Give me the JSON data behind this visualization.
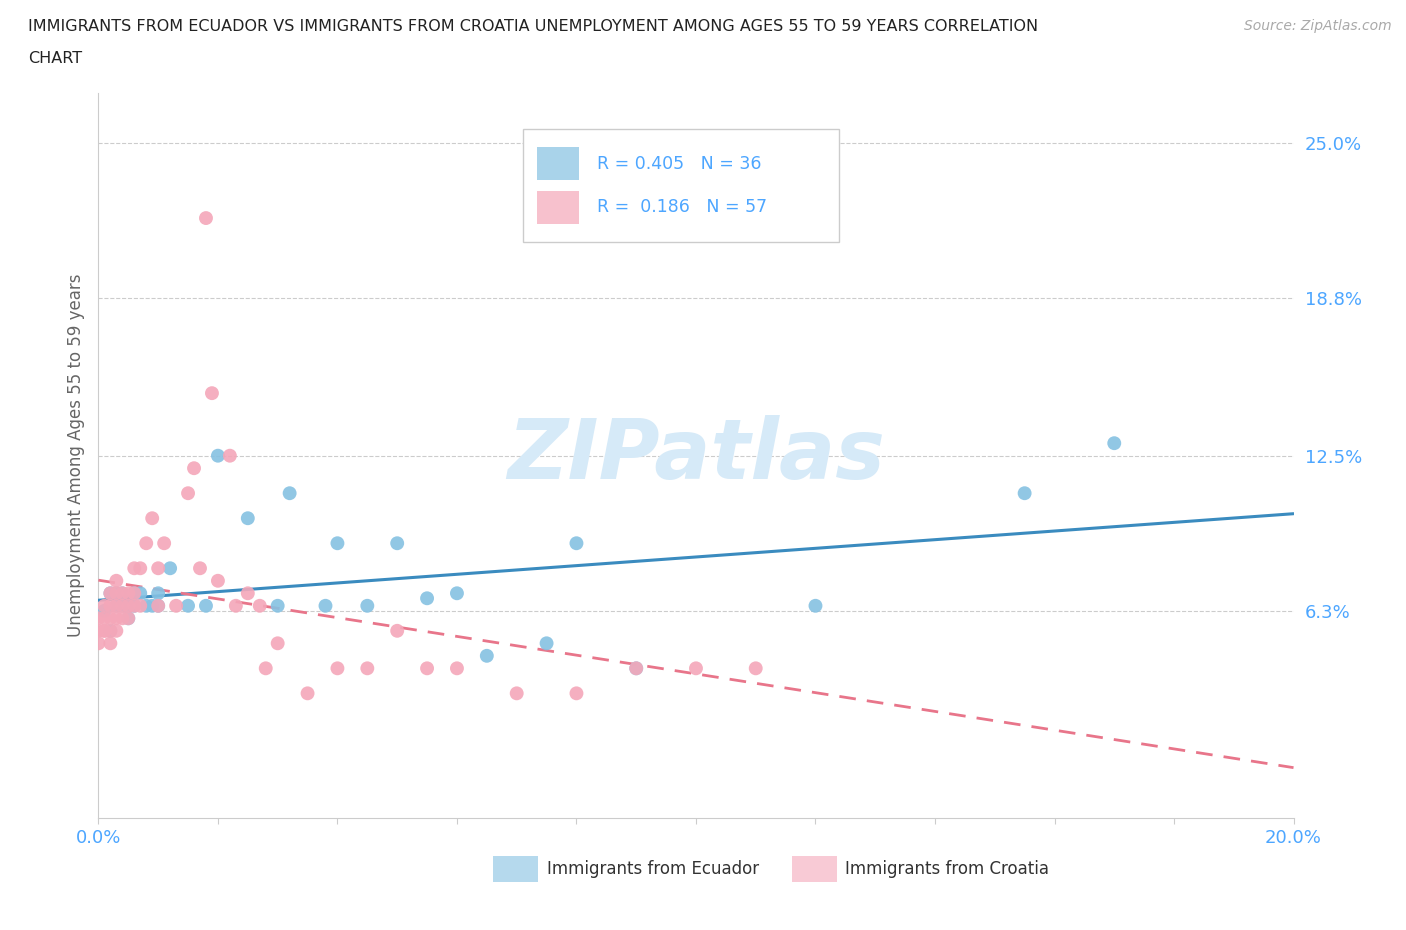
{
  "title_line1": "IMMIGRANTS FROM ECUADOR VS IMMIGRANTS FROM CROATIA UNEMPLOYMENT AMONG AGES 55 TO 59 YEARS CORRELATION",
  "title_line2": "CHART",
  "source": "Source: ZipAtlas.com",
  "ylabel": "Unemployment Among Ages 55 to 59 years",
  "xlim": [
    0.0,
    0.2
  ],
  "ylim": [
    -0.02,
    0.27
  ],
  "yticks": [
    0.063,
    0.125,
    0.188,
    0.25
  ],
  "ytick_labels": [
    "6.3%",
    "12.5%",
    "18.8%",
    "25.0%"
  ],
  "xticks": [
    0.0,
    0.02,
    0.04,
    0.06,
    0.08,
    0.1,
    0.12,
    0.14,
    0.16,
    0.18,
    0.2
  ],
  "xtick_labels_show": [
    "0.0%",
    "",
    "",
    "",
    "",
    "",
    "",
    "",
    "",
    "",
    "20.0%"
  ],
  "ecuador_R": 0.405,
  "ecuador_N": 36,
  "croatia_R": 0.186,
  "croatia_N": 57,
  "ecuador_color": "#85c1e2",
  "croatia_color": "#f4a7b9",
  "ecuador_line_color": "#3a8bbf",
  "croatia_line_color": "#e8758a",
  "background_color": "#ffffff",
  "grid_color": "#cccccc",
  "tick_color": "#4da6ff",
  "legend_text_color": "#4da6ff",
  "title_color": "#222222",
  "source_color": "#aaaaaa",
  "ylabel_color": "#666666",
  "watermark_color": "#d6eaf8",
  "ecuador_x": [
    0.001,
    0.002,
    0.002,
    0.003,
    0.003,
    0.004,
    0.004,
    0.005,
    0.005,
    0.006,
    0.006,
    0.007,
    0.008,
    0.009,
    0.01,
    0.01,
    0.012,
    0.015,
    0.018,
    0.02,
    0.025,
    0.03,
    0.032,
    0.038,
    0.04,
    0.045,
    0.05,
    0.055,
    0.06,
    0.065,
    0.075,
    0.08,
    0.09,
    0.12,
    0.155,
    0.17
  ],
  "ecuador_y": [
    0.063,
    0.055,
    0.07,
    0.065,
    0.07,
    0.07,
    0.065,
    0.06,
    0.065,
    0.065,
    0.07,
    0.07,
    0.065,
    0.065,
    0.07,
    0.065,
    0.08,
    0.065,
    0.065,
    0.125,
    0.1,
    0.065,
    0.11,
    0.065,
    0.09,
    0.065,
    0.09,
    0.068,
    0.07,
    0.045,
    0.05,
    0.09,
    0.04,
    0.065,
    0.11,
    0.13
  ],
  "croatia_x": [
    0.0,
    0.0,
    0.0,
    0.001,
    0.001,
    0.001,
    0.001,
    0.002,
    0.002,
    0.002,
    0.002,
    0.002,
    0.003,
    0.003,
    0.003,
    0.003,
    0.003,
    0.004,
    0.004,
    0.004,
    0.005,
    0.005,
    0.005,
    0.006,
    0.006,
    0.006,
    0.007,
    0.007,
    0.008,
    0.009,
    0.01,
    0.01,
    0.011,
    0.013,
    0.015,
    0.016,
    0.017,
    0.018,
    0.019,
    0.02,
    0.022,
    0.023,
    0.025,
    0.027,
    0.028,
    0.03,
    0.035,
    0.04,
    0.045,
    0.05,
    0.055,
    0.06,
    0.07,
    0.08,
    0.09,
    0.1,
    0.11
  ],
  "croatia_y": [
    0.05,
    0.055,
    0.06,
    0.055,
    0.055,
    0.06,
    0.065,
    0.05,
    0.055,
    0.06,
    0.065,
    0.07,
    0.055,
    0.06,
    0.065,
    0.07,
    0.075,
    0.06,
    0.065,
    0.07,
    0.06,
    0.065,
    0.07,
    0.065,
    0.07,
    0.08,
    0.065,
    0.08,
    0.09,
    0.1,
    0.065,
    0.08,
    0.09,
    0.065,
    0.11,
    0.12,
    0.08,
    0.22,
    0.15,
    0.075,
    0.125,
    0.065,
    0.07,
    0.065,
    0.04,
    0.05,
    0.03,
    0.04,
    0.04,
    0.055,
    0.04,
    0.04,
    0.03,
    0.03,
    0.04,
    0.04,
    0.04
  ]
}
